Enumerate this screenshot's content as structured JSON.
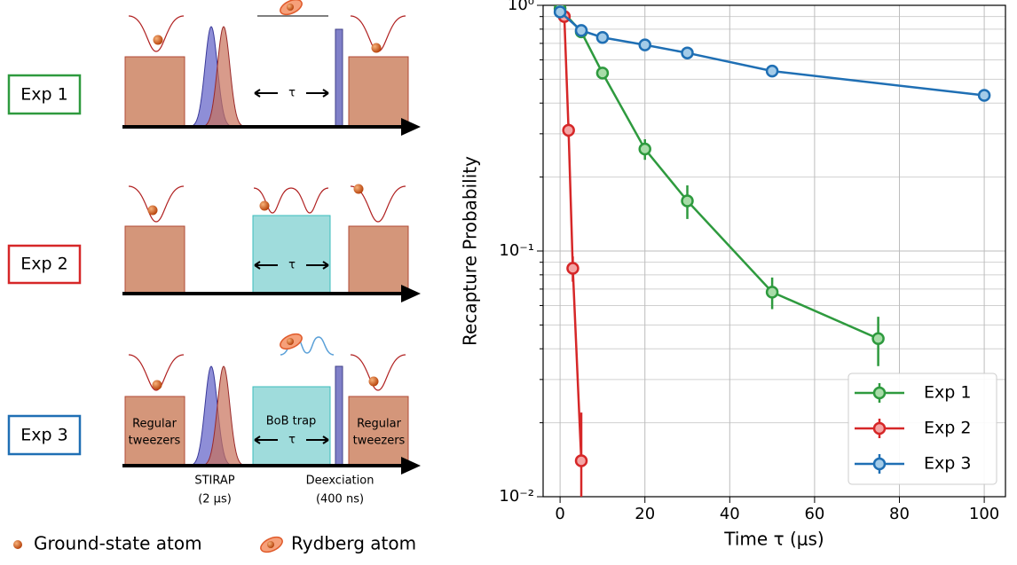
{
  "diagram": {
    "experiments": [
      "Exp 1",
      "Exp 2",
      "Exp 3"
    ],
    "tau": [
      "τ",
      "τ",
      "τ"
    ],
    "regular_tweezers_left": [
      "Regular",
      "tweezers"
    ],
    "regular_tweezers_right": [
      "Regular",
      "tweezers"
    ],
    "bob_trap": "BoB trap",
    "stirap": [
      "STIRAP",
      "(2 μs)"
    ],
    "deexcitation": [
      "Deexciation",
      "(400 ns)"
    ],
    "legend": [
      "Ground-state atom",
      "Rydberg atom"
    ]
  },
  "chart_data": {
    "type": "line",
    "xlabel": "Time τ (μs)",
    "ylabel": "Recapture Probability",
    "xlim": [
      -4,
      105
    ],
    "xticks": [
      0,
      20,
      40,
      60,
      80,
      100
    ],
    "ylim": [
      0.01,
      1
    ],
    "yscale": "log",
    "yticks": [
      {
        "value": 0.01,
        "label": "10⁻²"
      },
      {
        "value": 0.1,
        "label": "10⁻¹"
      },
      {
        "value": 1,
        "label": "10⁰"
      }
    ],
    "yminorticks": [
      0.02,
      0.03,
      0.04,
      0.05,
      0.06,
      0.07,
      0.08,
      0.09,
      0.2,
      0.3,
      0.4,
      0.5,
      0.6,
      0.7,
      0.8,
      0.9
    ],
    "grid": true,
    "legend_position": "lower right",
    "series": [
      {
        "name": "Exp 1",
        "color": "#2e9a3e",
        "marker_fill": "#a8dca8",
        "x": [
          0,
          5,
          10,
          20,
          30,
          50,
          75
        ],
        "values": [
          0.97,
          0.78,
          0.53,
          0.26,
          0.16,
          0.068,
          0.044
        ],
        "errors": [
          0.02,
          0.02,
          0.02,
          0.025,
          0.025,
          0.01,
          0.01
        ]
      },
      {
        "name": "Exp 2",
        "color": "#d62728",
        "marker_fill": "#f4a5a5",
        "x": [
          1,
          2,
          3,
          5
        ],
        "values": [
          0.9,
          0.31,
          0.085,
          0.014
        ],
        "errors": [
          0.02,
          0.02,
          0.01,
          0.008
        ]
      },
      {
        "name": "Exp 3",
        "color": "#1f6fb4",
        "marker_fill": "#a3cbe8",
        "x": [
          0,
          5,
          10,
          20,
          30,
          50,
          100
        ],
        "values": [
          0.94,
          0.79,
          0.74,
          0.69,
          0.64,
          0.54,
          0.43
        ],
        "errors": [
          0.01,
          0.01,
          0.01,
          0.01,
          0.01,
          0.01,
          0.01
        ]
      }
    ]
  }
}
